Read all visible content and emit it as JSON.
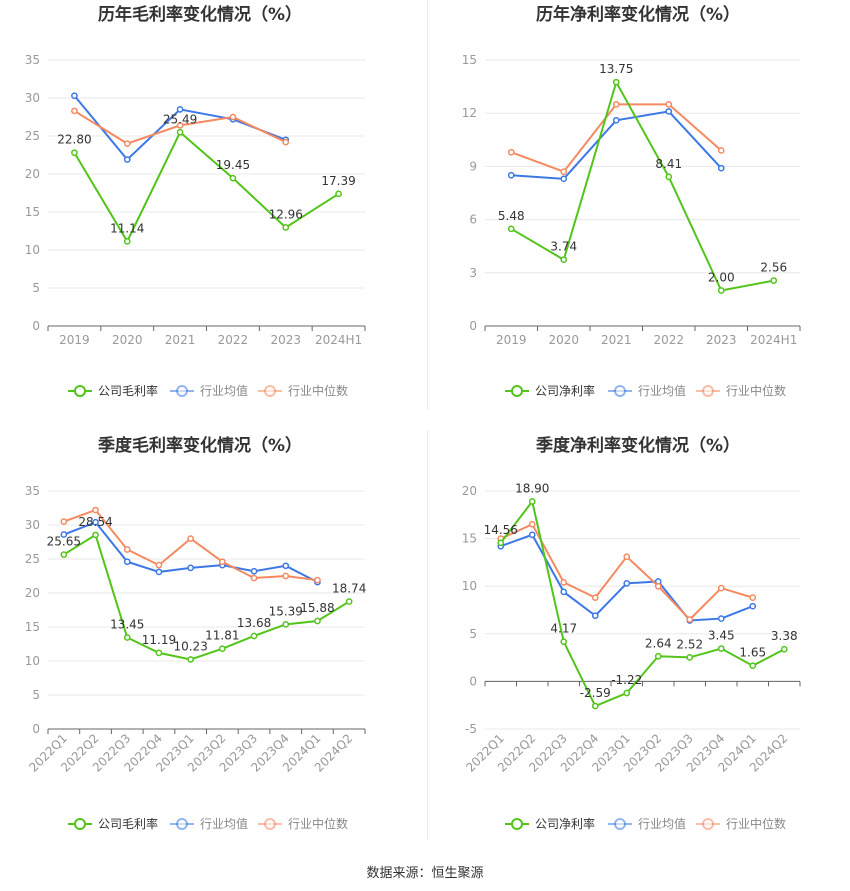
{
  "source": "数据来源：恒生聚源",
  "colors": {
    "company": "#52c41a",
    "avg": "#3c78e6",
    "median": "#f5895f",
    "axis": "#999999",
    "grid": "#e8e8e8"
  },
  "chart_data": [
    {
      "type": "line",
      "title": "历年毛利率变化情况（%）",
      "categories": [
        "2019",
        "2020",
        "2021",
        "2022",
        "2023",
        "2024H1"
      ],
      "ylim": [
        0,
        35
      ],
      "yticks": [
        0,
        5,
        10,
        15,
        20,
        25,
        30,
        35
      ],
      "grid": true,
      "legend": "bottom",
      "series": [
        {
          "name": "公司毛利率",
          "values": [
            22.8,
            11.14,
            25.49,
            19.45,
            12.96,
            17.39
          ],
          "labels": [
            "22.80",
            "11.14",
            "25.49",
            "19.45",
            "12.96",
            "17.39"
          ]
        },
        {
          "name": "行业均值",
          "values": [
            30.3,
            21.9,
            28.5,
            27.2,
            24.5,
            null
          ]
        },
        {
          "name": "行业中位数",
          "values": [
            28.3,
            24.0,
            26.4,
            27.5,
            24.2,
            null
          ]
        }
      ]
    },
    {
      "type": "line",
      "title": "历年净利率变化情况（%）",
      "categories": [
        "2019",
        "2020",
        "2021",
        "2022",
        "2023",
        "2024H1"
      ],
      "ylim": [
        0,
        15
      ],
      "yticks": [
        0,
        3,
        6,
        9,
        12,
        15
      ],
      "grid": true,
      "legend": "bottom",
      "series": [
        {
          "name": "公司净利率",
          "values": [
            5.48,
            3.74,
            13.75,
            8.41,
            2.0,
            2.56
          ],
          "labels": [
            "5.48",
            "3.74",
            "13.75",
            "8.41",
            "2.00",
            "2.56"
          ]
        },
        {
          "name": "行业均值",
          "values": [
            8.5,
            8.3,
            11.6,
            12.1,
            8.9,
            null
          ]
        },
        {
          "name": "行业中位数",
          "values": [
            9.8,
            8.7,
            12.5,
            12.5,
            9.9,
            null
          ]
        }
      ]
    },
    {
      "type": "line",
      "title": "季度毛利率变化情况（%）",
      "categories": [
        "2022Q1",
        "2022Q2",
        "2022Q3",
        "2022Q4",
        "2023Q1",
        "2023Q2",
        "2023Q3",
        "2023Q4",
        "2024Q1",
        "2024Q2"
      ],
      "ylim": [
        0,
        35
      ],
      "yticks": [
        0,
        5,
        10,
        15,
        20,
        25,
        30,
        35
      ],
      "grid": true,
      "legend": "bottom",
      "series": [
        {
          "name": "公司毛利率",
          "values": [
            25.65,
            28.54,
            13.45,
            11.19,
            10.23,
            11.81,
            13.68,
            15.39,
            15.88,
            18.74
          ],
          "labels": [
            "25.65",
            "28.54",
            "13.45",
            "11.19",
            "10.23",
            "11.81",
            "13.68",
            "15.39",
            "15.88",
            "18.74"
          ]
        },
        {
          "name": "行业均值",
          "values": [
            28.6,
            30.4,
            24.6,
            23.1,
            23.7,
            24.1,
            23.2,
            24.0,
            21.6,
            null
          ]
        },
        {
          "name": "行业中位数",
          "values": [
            30.5,
            32.2,
            26.4,
            24.1,
            28.0,
            24.6,
            22.2,
            22.5,
            21.9,
            null
          ]
        }
      ]
    },
    {
      "type": "line",
      "title": "季度净利率变化情况（%）",
      "categories": [
        "2022Q1",
        "2022Q2",
        "2022Q3",
        "2022Q4",
        "2023Q1",
        "2023Q2",
        "2023Q3",
        "2023Q4",
        "2024Q1",
        "2024Q2"
      ],
      "ylim": [
        -5,
        20
      ],
      "yticks": [
        -5,
        0,
        5,
        10,
        15,
        20
      ],
      "grid": true,
      "legend": "bottom",
      "series": [
        {
          "name": "公司净利率",
          "values": [
            14.56,
            18.9,
            4.17,
            -2.59,
            -1.22,
            2.64,
            2.52,
            3.45,
            1.65,
            3.38
          ],
          "labels": [
            "14.56",
            "18.90",
            "4.17",
            "-2.59",
            "-1.22",
            "2.64",
            "2.52",
            "3.45",
            "1.65",
            "3.38"
          ]
        },
        {
          "name": "行业均值",
          "values": [
            14.2,
            15.4,
            9.4,
            6.9,
            10.3,
            10.5,
            6.4,
            6.6,
            7.9,
            null
          ]
        },
        {
          "name": "行业中位数",
          "values": [
            15.0,
            16.5,
            10.4,
            8.8,
            13.1,
            10.0,
            6.5,
            9.8,
            8.8,
            null
          ]
        }
      ]
    }
  ]
}
